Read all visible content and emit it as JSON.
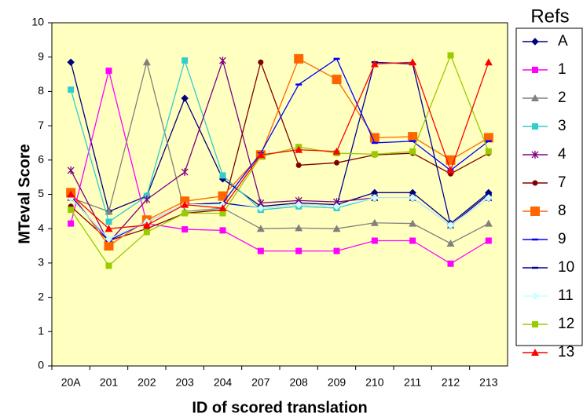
{
  "chart_data": {
    "type": "line",
    "x_label": "ID of scored translation",
    "y_label": "MTeval Score",
    "legend_title": "Refs",
    "categories": [
      "20A",
      "201",
      "202",
      "203",
      "204",
      "207",
      "208",
      "209",
      "210",
      "211",
      "212",
      "213"
    ],
    "ylim": [
      0,
      10
    ],
    "yticks": [
      0,
      1,
      2,
      3,
      4,
      5,
      6,
      7,
      8,
      9,
      10
    ],
    "grid": false,
    "legend": "right",
    "plot_background": "#ffffc0",
    "series": [
      {
        "name": "A",
        "color": "#000080",
        "marker": "diamond",
        "values": [
          8.85,
          4.5,
          4.95,
          7.8,
          5.45,
          4.65,
          4.75,
          4.7,
          5.05,
          5.05,
          4.15,
          5.05
        ]
      },
      {
        "name": "1",
        "color": "#ff00ff",
        "marker": "square",
        "values": [
          4.15,
          8.6,
          4.15,
          3.98,
          3.95,
          3.35,
          3.35,
          3.35,
          3.65,
          3.65,
          2.98,
          3.65
        ]
      },
      {
        "name": "2",
        "color": "#808080",
        "marker": "triangle",
        "values": [
          4.9,
          4.5,
          8.85,
          4.5,
          4.6,
          4.0,
          4.02,
          4.0,
          4.17,
          4.15,
          3.57,
          4.15
        ]
      },
      {
        "name": "3",
        "color": "#33cccc",
        "marker": "square",
        "values": [
          8.05,
          4.2,
          4.95,
          8.9,
          5.55,
          4.55,
          4.65,
          4.6,
          4.9,
          4.9,
          4.1,
          4.9
        ]
      },
      {
        "name": "4",
        "color": "#800080",
        "marker": "star",
        "values": [
          5.7,
          3.6,
          4.85,
          5.65,
          8.9,
          4.75,
          4.82,
          4.78,
          4.9,
          4.9,
          4.1,
          4.9
        ]
      },
      {
        "name": "7",
        "color": "#800000",
        "marker": "circle",
        "values": [
          4.65,
          3.65,
          4.0,
          4.45,
          4.55,
          8.85,
          5.85,
          5.92,
          6.15,
          6.2,
          5.6,
          6.2
        ]
      },
      {
        "name": "8",
        "color": "#ff6600",
        "marker": "bigsquare",
        "values": [
          5.05,
          3.5,
          4.25,
          4.8,
          4.95,
          6.15,
          8.95,
          8.35,
          6.65,
          6.68,
          6.0,
          6.65
        ]
      },
      {
        "name": "9",
        "color": "#0000ff",
        "marker": "dash",
        "values": [
          4.95,
          3.65,
          4.2,
          4.7,
          4.75,
          6.2,
          8.2,
          8.95,
          6.5,
          6.55,
          5.7,
          6.55
        ]
      },
      {
        "name": "10",
        "color": "#000099",
        "marker": "dash",
        "values": [
          4.9,
          3.7,
          4.2,
          4.7,
          4.75,
          4.6,
          4.7,
          4.65,
          8.85,
          8.8,
          4.1,
          5.0
        ]
      },
      {
        "name": "11",
        "color": "#ccffff",
        "marker": "diamond",
        "values": [
          4.9,
          3.7,
          4.2,
          4.7,
          4.7,
          4.6,
          4.7,
          4.65,
          4.9,
          4.9,
          4.1,
          4.9
        ]
      },
      {
        "name": "12",
        "color": "#99cc00",
        "marker": "square",
        "values": [
          4.55,
          2.92,
          3.9,
          4.45,
          4.45,
          6.1,
          6.38,
          6.2,
          6.17,
          6.25,
          9.05,
          6.25
        ]
      },
      {
        "name": "13",
        "color": "#ff0000",
        "marker": "triangle",
        "values": [
          5.0,
          4.0,
          4.1,
          4.7,
          4.6,
          6.15,
          6.3,
          6.25,
          8.8,
          8.85,
          5.7,
          8.85
        ]
      }
    ]
  }
}
